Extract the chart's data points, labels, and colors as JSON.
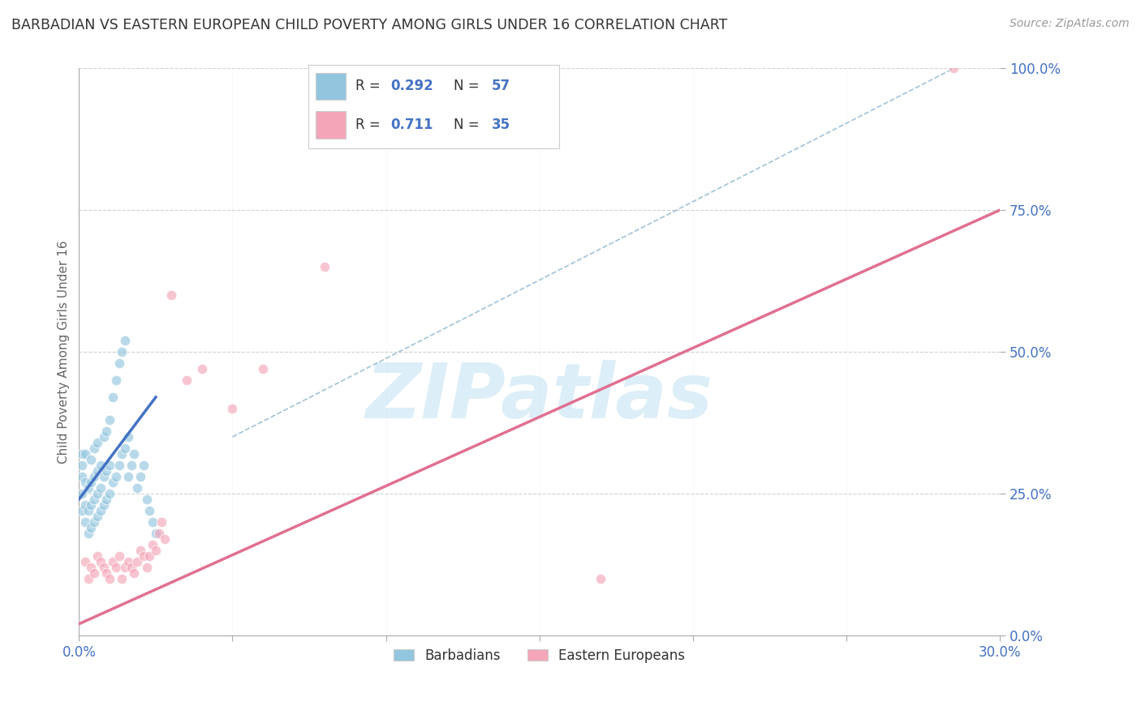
{
  "title": "BARBADIAN VS EASTERN EUROPEAN CHILD POVERTY AMONG GIRLS UNDER 16 CORRELATION CHART",
  "source": "Source: ZipAtlas.com",
  "ylabel": "Child Poverty Among Girls Under 16",
  "xlim": [
    0.0,
    0.3
  ],
  "ylim": [
    0.0,
    1.0
  ],
  "xticks": [
    0.0,
    0.05,
    0.1,
    0.15,
    0.2,
    0.25,
    0.3
  ],
  "yticks": [
    0.0,
    0.25,
    0.5,
    0.75,
    1.0
  ],
  "barbadian_R": 0.292,
  "barbadian_N": 57,
  "eastern_R": 0.711,
  "eastern_N": 35,
  "blue_color": "#92c5de",
  "pink_color": "#f4a6b8",
  "legend_blue_label": "Barbadians",
  "legend_pink_label": "Eastern Europeans",
  "watermark": "ZIPatlas",
  "watermark_color": "#dceef8",
  "background_color": "#ffffff",
  "grid_color": "#cccccc",
  "axis_color": "#aaaaaa",
  "title_color": "#333333",
  "source_color": "#999999",
  "tick_label_color": "#4472c4",
  "ylabel_color": "#666666",
  "blue_line_color": "#4472c4",
  "pink_line_color": "#e07090",
  "dashed_line_color": "#90b8d0",
  "blue_scatter_x": [
    0.001,
    0.001,
    0.001,
    0.001,
    0.001,
    0.002,
    0.002,
    0.002,
    0.002,
    0.003,
    0.003,
    0.003,
    0.004,
    0.004,
    0.004,
    0.004,
    0.005,
    0.005,
    0.005,
    0.005,
    0.006,
    0.006,
    0.006,
    0.006,
    0.007,
    0.007,
    0.007,
    0.008,
    0.008,
    0.008,
    0.009,
    0.009,
    0.009,
    0.01,
    0.01,
    0.01,
    0.011,
    0.011,
    0.012,
    0.012,
    0.013,
    0.013,
    0.014,
    0.014,
    0.015,
    0.015,
    0.016,
    0.016,
    0.017,
    0.018,
    0.019,
    0.02,
    0.021,
    0.022,
    0.023,
    0.024,
    0.025
  ],
  "blue_scatter_y": [
    0.22,
    0.25,
    0.28,
    0.3,
    0.32,
    0.2,
    0.23,
    0.27,
    0.32,
    0.18,
    0.22,
    0.26,
    0.19,
    0.23,
    0.27,
    0.31,
    0.2,
    0.24,
    0.28,
    0.33,
    0.21,
    0.25,
    0.29,
    0.34,
    0.22,
    0.26,
    0.3,
    0.23,
    0.28,
    0.35,
    0.24,
    0.29,
    0.36,
    0.25,
    0.3,
    0.38,
    0.27,
    0.42,
    0.28,
    0.45,
    0.3,
    0.48,
    0.32,
    0.5,
    0.33,
    0.52,
    0.35,
    0.28,
    0.3,
    0.32,
    0.26,
    0.28,
    0.3,
    0.24,
    0.22,
    0.2,
    0.18
  ],
  "pink_scatter_x": [
    0.002,
    0.003,
    0.004,
    0.005,
    0.006,
    0.007,
    0.008,
    0.009,
    0.01,
    0.011,
    0.012,
    0.013,
    0.014,
    0.015,
    0.016,
    0.017,
    0.018,
    0.019,
    0.02,
    0.021,
    0.022,
    0.023,
    0.024,
    0.025,
    0.026,
    0.027,
    0.028,
    0.03,
    0.035,
    0.04,
    0.05,
    0.06,
    0.08,
    0.17,
    0.285
  ],
  "pink_scatter_y": [
    0.13,
    0.1,
    0.12,
    0.11,
    0.14,
    0.13,
    0.12,
    0.11,
    0.1,
    0.13,
    0.12,
    0.14,
    0.1,
    0.12,
    0.13,
    0.12,
    0.11,
    0.13,
    0.15,
    0.14,
    0.12,
    0.14,
    0.16,
    0.15,
    0.18,
    0.2,
    0.17,
    0.6,
    0.45,
    0.47,
    0.4,
    0.47,
    0.65,
    0.1,
    1.0
  ],
  "blue_line_x": [
    0.0,
    0.025
  ],
  "blue_line_y": [
    0.24,
    0.42
  ],
  "pink_line_x": [
    0.0,
    0.3
  ],
  "pink_line_y": [
    0.02,
    0.75
  ],
  "dashed_line_x": [
    0.05,
    0.285
  ],
  "dashed_line_y": [
    0.35,
    1.0
  ]
}
